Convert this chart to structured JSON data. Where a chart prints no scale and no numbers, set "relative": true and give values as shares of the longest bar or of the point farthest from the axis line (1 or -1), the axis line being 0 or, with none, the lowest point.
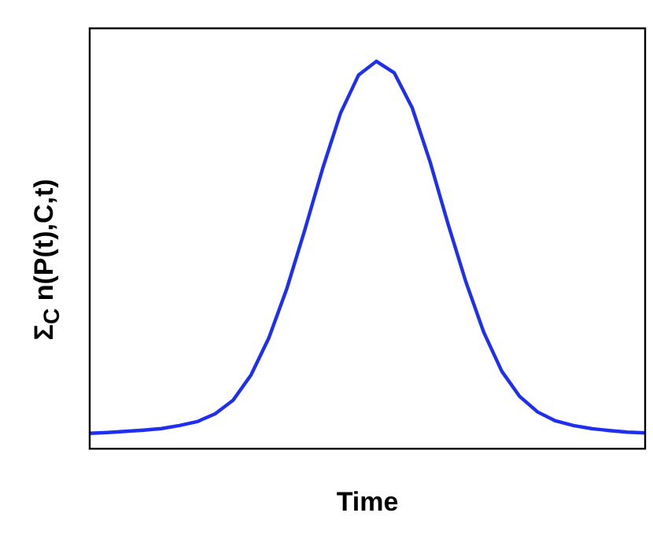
{
  "chart_data": {
    "type": "line",
    "relative": true,
    "xlabel": "Time",
    "ylabel": "Σ$_{C}$ n(P(t),C,t)",
    "categories": [
      null,
      null,
      null,
      null,
      null,
      null,
      null,
      null,
      null,
      null,
      null,
      null,
      null,
      null,
      null,
      null,
      null,
      null,
      null,
      null,
      null,
      null,
      null,
      null,
      null,
      null,
      null,
      null,
      null,
      null,
      null,
      null
    ],
    "series": [
      {
        "color": "#1f2ff0",
        "values": [
          0.04,
          0.042,
          0.045,
          0.048,
          0.052,
          0.06,
          0.07,
          0.09,
          0.125,
          0.19,
          0.286,
          0.413,
          0.564,
          0.723,
          0.866,
          0.964,
          1,
          0.97,
          0.88,
          0.74,
          0.58,
          0.43,
          0.3,
          0.2,
          0.135,
          0.095,
          0.072,
          0.06,
          0.052,
          0.047,
          0.043,
          0.041
        ]
      }
    ],
    "grid": false,
    "legend": false,
    "marker": "none",
    "line_style": "solid"
  }
}
